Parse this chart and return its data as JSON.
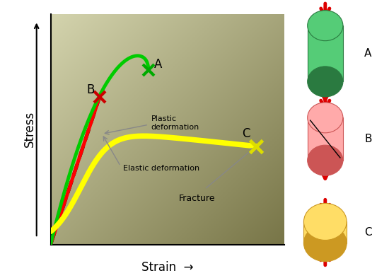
{
  "xlabel": "Strain",
  "ylabel": "Stress",
  "curve_A_color": "#00cc00",
  "curve_B_color": "#ff0000",
  "curve_C_color": "#ffff00",
  "fracture_A_color": "#00aa00",
  "fracture_B_color": "#cc0000",
  "fracture_C_color": "#dddd00",
  "linewidth_A": 3.5,
  "linewidth_B": 3.5,
  "linewidth_C": 5.5,
  "figsize": [
    5.5,
    3.93
  ],
  "dpi": 100,
  "grad_topleft": [
    0.83,
    0.83,
    0.68
  ],
  "grad_bottomright": [
    0.47,
    0.46,
    0.28
  ],
  "cyl_A_color": "#44cc66",
  "cyl_A_dark": "#2a7a40",
  "cyl_B_color": "#ff9999",
  "cyl_B_dark": "#cc4444",
  "cyl_C_color": "#ffcc44",
  "cyl_C_dark": "#cc9922",
  "arrow_color": "#dd0000"
}
